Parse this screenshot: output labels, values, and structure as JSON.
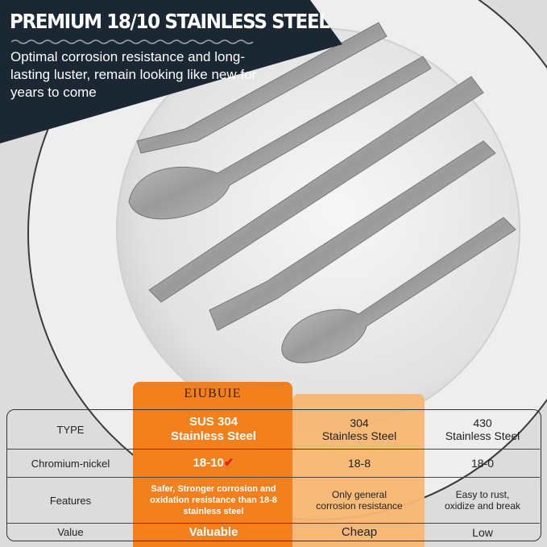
{
  "banner": {
    "headline": "PREMIUM 18/10 STAINLESS STEEL",
    "subtitle": "Optimal corrosion resistance and long-lasting luster, remain looking like new for years to come",
    "panel_color": "#1b2733"
  },
  "comparison": {
    "brand": "EIUBUIE",
    "accent_color": "#f47f1d",
    "secondary_color": "#f8b672",
    "check_icon": "check-mark-icon",
    "rows": [
      {
        "label": "TYPE",
        "cols": [
          "SUS 304\nStainless Steel",
          "304\nStainless Steel",
          "430\nStainless Steel"
        ]
      },
      {
        "label": "Chromium-nickel",
        "cols": [
          "18-10",
          "18-8",
          "18-0"
        ]
      },
      {
        "label": "Features",
        "cols": [
          "Safer, Stronger corrosion and oxidation resistance than 18-8 stainless steel",
          "Only general corrosion resistance",
          "Easy to rust, oxidize and break"
        ]
      },
      {
        "label": "Value",
        "cols": [
          "Valuable",
          "Cheap",
          "Low"
        ]
      }
    ]
  }
}
